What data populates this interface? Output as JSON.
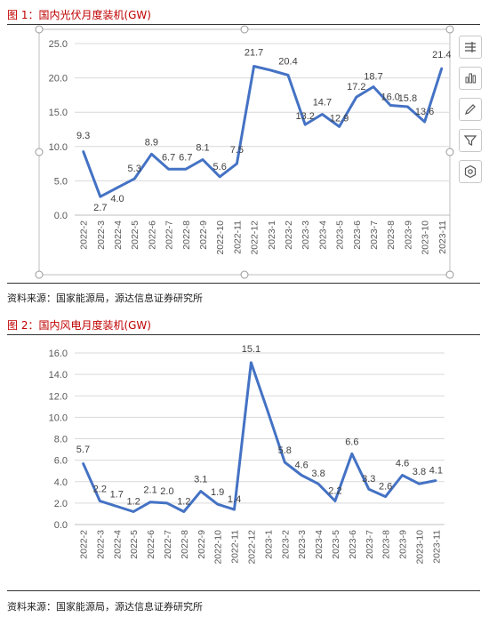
{
  "figure1": {
    "title": "图 1：国内光伏月度装机(GW)",
    "source": "资料来源：国家能源局，源达信息证券研究所"
  },
  "figure2": {
    "title": "图 2：国内风电月度装机(GW)",
    "source": "资料来源：国家能源局，源达信息证券研究所"
  },
  "toolbar": {
    "icons": [
      "chart-elements-icon",
      "chart-styles-icon",
      "pen-icon",
      "filter-icon",
      "settings-icon"
    ]
  },
  "colors": {
    "line": "#4472c4",
    "title": "#c00000"
  },
  "chart_data": [
    {
      "type": "line",
      "title": "",
      "xlabel": "",
      "ylabel": "",
      "ylim": [
        0,
        25
      ],
      "yticks": [
        "0.0",
        "5.0",
        "10.0",
        "15.0",
        "20.0",
        "25.0"
      ],
      "grid": true,
      "categories": [
        "2022-2",
        "2022-3",
        "2022-4",
        "2022-5",
        "2022-6",
        "2022-7",
        "2022-8",
        "2022-9",
        "2022-10",
        "2022-11",
        "2022-12",
        "2023-1",
        "2023-2",
        "2023-3",
        "2023-4",
        "2023-5",
        "2023-6",
        "2023-7",
        "2023-8",
        "2023-9",
        "2023-10",
        "2023-11"
      ],
      "values": [
        9.3,
        2.7,
        4.0,
        5.3,
        8.9,
        6.7,
        6.7,
        8.1,
        5.6,
        7.5,
        21.7,
        21.1,
        20.4,
        13.2,
        14.7,
        12.9,
        17.2,
        18.7,
        16.0,
        15.8,
        13.6,
        21.4
      ],
      "labels": [
        "9.3",
        "2.7",
        "4.0",
        "5.3",
        "8.9",
        "6.7",
        "6.7",
        "8.1",
        "5.6",
        "7.5",
        "21.7",
        "",
        "20.4",
        "13.2",
        "14.7",
        "12.9",
        "17.2",
        "18.7",
        "16.0",
        "15.8",
        "13.6",
        "21.4"
      ]
    },
    {
      "type": "line",
      "title": "",
      "xlabel": "",
      "ylabel": "",
      "ylim": [
        0,
        16
      ],
      "yticks": [
        "0.0",
        "2.0",
        "4.0",
        "6.0",
        "8.0",
        "10.0",
        "12.0",
        "14.0",
        "16.0"
      ],
      "grid": true,
      "categories": [
        "2022-2",
        "2022-3",
        "2022-4",
        "2022-5",
        "2022-6",
        "2022-7",
        "2022-8",
        "2022-9",
        "2022-10",
        "2022-11",
        "2022-12",
        "2023-1",
        "2023-2",
        "2023-3",
        "2023-4",
        "2023-5",
        "2023-6",
        "2023-7",
        "2023-8",
        "2023-9",
        "2023-10",
        "2023-11"
      ],
      "values": [
        5.7,
        2.2,
        1.7,
        1.2,
        2.1,
        2.0,
        1.2,
        3.1,
        1.9,
        1.4,
        15.1,
        10.5,
        5.8,
        4.6,
        3.8,
        2.2,
        6.6,
        3.3,
        2.6,
        4.6,
        3.8,
        4.1
      ],
      "labels": [
        "5.7",
        "2.2",
        "1.7",
        "1.2",
        "2.1",
        "2.0",
        "1.2",
        "3.1",
        "1.9",
        "1.4",
        "15.1",
        "",
        "5.8",
        "4.6",
        "3.8",
        "2.2",
        "6.6",
        "3.3",
        "2.6",
        "4.6",
        "3.8",
        "4.1"
      ]
    }
  ]
}
